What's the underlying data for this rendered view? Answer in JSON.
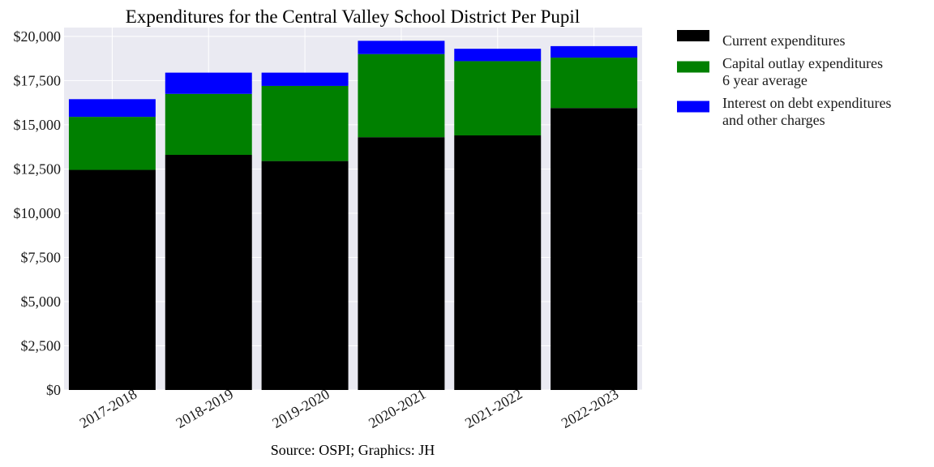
{
  "chart_data": {
    "type": "bar",
    "stacked": true,
    "title": "Expenditures for the Central Valley School District Per Pupil",
    "source_caption": "Source: OSPI; Graphics: JH",
    "categories": [
      "2017-2018",
      "2018-2019",
      "2019-2020",
      "2020-2021",
      "2021-2022",
      "2022-2023"
    ],
    "series": [
      {
        "name": "Current expenditures",
        "color": "#000000",
        "values": [
          12450,
          13300,
          12950,
          14300,
          14400,
          15950
        ]
      },
      {
        "name_lines": [
          "Capital outlay expenditures",
          "6 year average"
        ],
        "color": "#008000",
        "values": [
          3000,
          3450,
          4250,
          4700,
          4200,
          2850
        ]
      },
      {
        "name_lines": [
          "Interest on debt expenditures",
          "and other charges"
        ],
        "color": "#0000ff",
        "values": [
          1000,
          1200,
          750,
          750,
          700,
          650
        ]
      }
    ],
    "ylim": [
      0,
      20500
    ],
    "yticks": [
      0,
      2500,
      5000,
      7500,
      10000,
      12500,
      15000,
      17500,
      20000
    ],
    "ytick_labels": [
      "$0",
      "$2,500",
      "$5,000",
      "$7,500",
      "$10,000",
      "$12,500",
      "$15,000",
      "$17,500",
      "$20,000"
    ],
    "xtick_rotation_deg": 30,
    "grid": true,
    "legend_position": "outside-right-top",
    "plot_background": "#eaeaf2"
  }
}
